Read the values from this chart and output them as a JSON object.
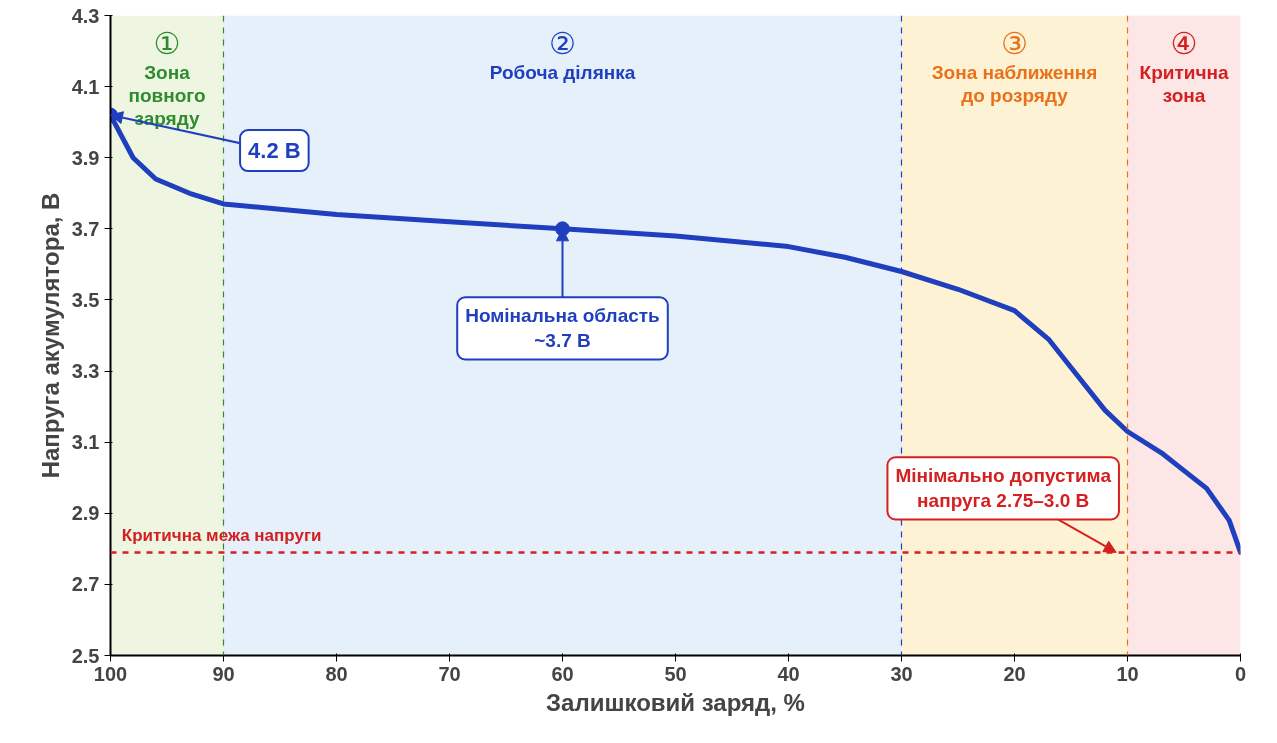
{
  "chart_data": {
    "type": "line",
    "xlabel": "Залишковий заряд, %",
    "ylabel": "Напруга акумулятора, В",
    "x": [
      100,
      98,
      96,
      93,
      90,
      85,
      80,
      70,
      60,
      50,
      40,
      35,
      30,
      25,
      20,
      17,
      15,
      12,
      10,
      7,
      5,
      3,
      1,
      0
    ],
    "series": [
      {
        "color": "#1f3fbf",
        "values": [
          4.02,
          3.9,
          3.84,
          3.8,
          3.77,
          3.755,
          3.74,
          3.72,
          3.7,
          3.68,
          3.65,
          3.62,
          3.58,
          3.53,
          3.47,
          3.39,
          3.31,
          3.19,
          3.13,
          3.07,
          3.02,
          2.97,
          2.88,
          2.79
        ]
      }
    ],
    "xlim": [
      100,
      0
    ],
    "xticks": [
      100,
      90,
      80,
      70,
      60,
      50,
      40,
      30,
      20,
      10,
      0
    ],
    "ylim": [
      2.5,
      4.3
    ],
    "yticks": [
      2.5,
      2.7,
      2.9,
      3.1,
      3.3,
      3.5,
      3.7,
      3.9,
      4.1,
      4.3
    ],
    "grid": true,
    "marker": "none",
    "line_style": "solid",
    "bands": [
      {
        "axis": "x",
        "from": 100,
        "to": 90,
        "label": "①\nЗона\nповного\nзаряду",
        "color": "#eef6e2"
      },
      {
        "axis": "x",
        "from": 90,
        "to": 30,
        "label": "②\nРобоча ділянка",
        "color": "#e6f0fb"
      },
      {
        "axis": "x",
        "from": 30,
        "to": 10,
        "label": "③\nЗона наближення\nдо розряду",
        "color": "#fdf3d4"
      },
      {
        "axis": "x",
        "from": 10,
        "to": 0,
        "label": "④\nКритична\nзона",
        "color": "#fce6e6"
      }
    ],
    "ref_lines": [
      {
        "axis": "y",
        "value": 2.79,
        "label": "Критична межа напруги",
        "color": "#d42020",
        "line_style": "dashed"
      },
      {
        "axis": "x",
        "value": 90,
        "color": "#2e8b2e",
        "line_style": "dashed"
      },
      {
        "axis": "x",
        "value": 30,
        "color": "#1f3fbf",
        "line_style": "dashed"
      },
      {
        "axis": "x",
        "value": 10,
        "color": "#e8711a",
        "line_style": "dashed"
      }
    ],
    "annotations": [
      {
        "text": "4.2 В",
        "x": 100,
        "y": 4.02
      },
      {
        "text": "Номінальна область\n~3.7 В",
        "x": 60,
        "y": 3.7
      },
      {
        "text": "Мінімально допустима\nнапруга 2.75–3.0 В",
        "x": 11,
        "y": 2.79
      }
    ]
  }
}
